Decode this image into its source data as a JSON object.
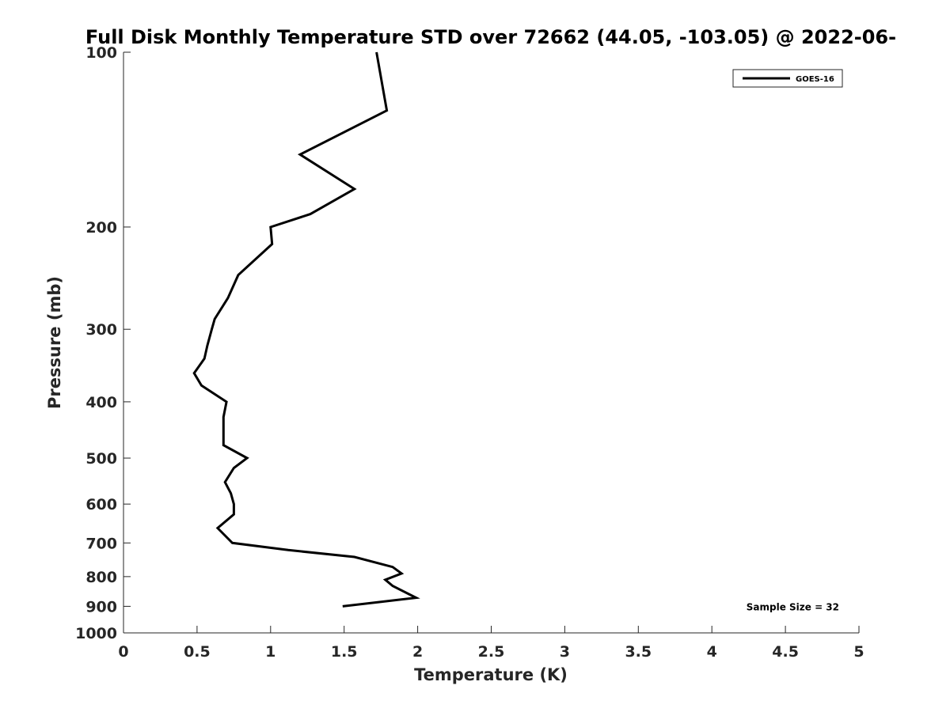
{
  "chart_data": {
    "type": "line",
    "title": "Full Disk Monthly Temperature STD over 72662 (44.05, -103.05) @ 2022-06-",
    "xlabel": "Temperature (K)",
    "ylabel": "Pressure (mb)",
    "xlim": [
      0,
      5
    ],
    "ylim": [
      100,
      1000
    ],
    "y_scale": "log",
    "y_reversed": true,
    "x_ticks": [
      0,
      0.5,
      1,
      1.5,
      2,
      2.5,
      3,
      3.5,
      4,
      4.5,
      5
    ],
    "x_tick_labels": [
      "0",
      "0.5",
      "1",
      "1.5",
      "2",
      "2.5",
      "3",
      "3.5",
      "4",
      "4.5",
      "5"
    ],
    "y_ticks": [
      100,
      200,
      300,
      400,
      500,
      600,
      700,
      800,
      900,
      1000
    ],
    "y_tick_labels": [
      "100",
      "200",
      "300",
      "400",
      "500",
      "600",
      "700",
      "800",
      "900",
      "1000"
    ],
    "grid": false,
    "legend_position": "top-right",
    "line_color": "#000000",
    "series": [
      {
        "name": "GOES-16",
        "x": [
          1.72,
          1.79,
          1.2,
          1.57,
          1.27,
          1.0,
          1.01,
          0.78,
          0.71,
          0.62,
          0.6,
          0.57,
          0.55,
          0.48,
          0.53,
          0.7,
          0.68,
          0.68,
          0.68,
          0.84,
          0.75,
          0.69,
          0.73,
          0.75,
          0.75,
          0.64,
          0.74,
          1.12,
          1.57,
          1.83,
          1.89,
          1.78,
          1.83,
          1.99,
          1.49
        ],
        "y": [
          100,
          126,
          150,
          172,
          190,
          200,
          214,
          242,
          265,
          288,
          300,
          320,
          337,
          357,
          375,
          400,
          425,
          450,
          475,
          500,
          520,
          550,
          575,
          600,
          625,
          660,
          700,
          720,
          740,
          770,
          790,
          810,
          830,
          870,
          900
        ]
      }
    ],
    "annotations": [
      {
        "text": "Sample Size = 32",
        "x": 4.55,
        "y": 900
      }
    ]
  }
}
